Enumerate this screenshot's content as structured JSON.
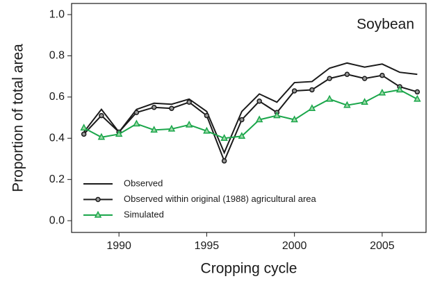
{
  "chart_data": {
    "type": "line",
    "annotation": "Soybean",
    "x_label": "Cropping cycle",
    "y_label": "Proportion of total area",
    "x": [
      1988,
      1989,
      1990,
      1991,
      1992,
      1993,
      1994,
      1995,
      1996,
      1997,
      1998,
      1999,
      2000,
      2001,
      2002,
      2003,
      2004,
      2005,
      2006,
      2007
    ],
    "series": [
      {
        "name": "Observed",
        "color": "#1a1a1a",
        "marker": "none",
        "values": [
          0.43,
          0.54,
          0.43,
          0.54,
          0.57,
          0.565,
          0.59,
          0.53,
          0.33,
          0.53,
          0.615,
          0.575,
          0.67,
          0.675,
          0.74,
          0.765,
          0.745,
          0.76,
          0.72,
          0.71
        ]
      },
      {
        "name": "Observed within original (1988) agricultural area",
        "color": "#1a1a1a",
        "marker": "circle",
        "values": [
          0.42,
          0.51,
          0.43,
          0.525,
          0.55,
          0.545,
          0.575,
          0.51,
          0.29,
          0.49,
          0.58,
          0.525,
          0.63,
          0.635,
          0.69,
          0.71,
          0.69,
          0.705,
          0.65,
          0.625
        ]
      },
      {
        "name": "Simulated",
        "color": "#1aa64a",
        "marker": "triangle",
        "values": [
          0.45,
          0.405,
          0.42,
          0.47,
          0.44,
          0.445,
          0.465,
          0.435,
          0.4,
          0.41,
          0.49,
          0.51,
          0.49,
          0.545,
          0.59,
          0.56,
          0.575,
          0.62,
          0.635,
          0.59
        ]
      }
    ],
    "xlim": [
      1987.3,
      2007.5
    ],
    "ylim": [
      -0.057,
      1.054
    ],
    "xticks": [
      1990,
      1995,
      2000,
      2005
    ],
    "yticks": [
      {
        "value": 0,
        "label": "0.0"
      },
      0.2,
      0.4,
      0.6,
      0.8,
      {
        "value": 1,
        "label": "1.0"
      }
    ],
    "legend": "bottom-left"
  }
}
